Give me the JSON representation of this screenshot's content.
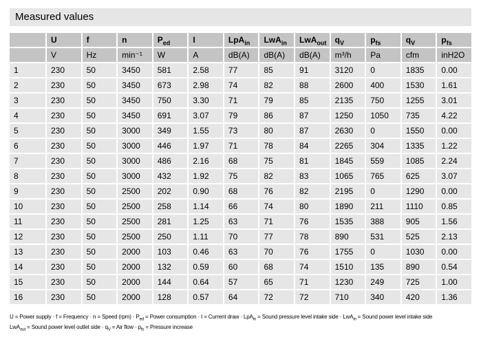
{
  "title": "Measured values",
  "colors": {
    "title_bar_bg": "#e6e6e6",
    "header_bg": "#c4c4c4",
    "cell_bg": "#e6e6e6",
    "text": "#000000"
  },
  "table": {
    "columns": [
      {
        "base": "",
        "sub": ""
      },
      {
        "base": "U",
        "sub": ""
      },
      {
        "base": "f",
        "sub": ""
      },
      {
        "base": "n",
        "sub": ""
      },
      {
        "base": "P",
        "sub": "ed"
      },
      {
        "base": "I",
        "sub": ""
      },
      {
        "base": "LpA",
        "sub": "in"
      },
      {
        "base": "LwA",
        "sub": "in"
      },
      {
        "base": "LwA",
        "sub": "out"
      },
      {
        "base": "q",
        "sub": "V"
      },
      {
        "base": "p",
        "sub": "fs"
      },
      {
        "base": "q",
        "sub": "V"
      },
      {
        "base": "p",
        "sub": "fs"
      }
    ],
    "units": [
      "",
      "V",
      "Hz",
      "min⁻¹",
      "W",
      "A",
      "dB(A)",
      "dB(A)",
      "dB(A)",
      "m³/h",
      "Pa",
      "cfm",
      "inH2O"
    ],
    "rows": [
      {
        "n": "1",
        "values": [
          "230",
          "50",
          "3450",
          "581",
          "2.58",
          "77",
          "85",
          "91",
          "3120",
          "0",
          "1835",
          "0.00"
        ]
      },
      {
        "n": "2",
        "values": [
          "230",
          "50",
          "3450",
          "673",
          "2.98",
          "74",
          "82",
          "88",
          "2600",
          "400",
          "1530",
          "1.61"
        ]
      },
      {
        "n": "3",
        "values": [
          "230",
          "50",
          "3450",
          "750",
          "3.30",
          "71",
          "79",
          "85",
          "2135",
          "750",
          "1255",
          "3.01"
        ]
      },
      {
        "n": "4",
        "values": [
          "230",
          "50",
          "3450",
          "691",
          "3.07",
          "79",
          "86",
          "87",
          "1250",
          "1050",
          "735",
          "4.22"
        ]
      },
      {
        "n": "5",
        "values": [
          "230",
          "50",
          "3000",
          "349",
          "1.55",
          "73",
          "80",
          "87",
          "2630",
          "0",
          "1550",
          "0.00"
        ]
      },
      {
        "n": "6",
        "values": [
          "230",
          "50",
          "3000",
          "446",
          "1.97",
          "71",
          "78",
          "84",
          "2265",
          "304",
          "1335",
          "1.22"
        ]
      },
      {
        "n": "7",
        "values": [
          "230",
          "50",
          "3000",
          "486",
          "2.16",
          "68",
          "75",
          "81",
          "1845",
          "559",
          "1085",
          "2.24"
        ]
      },
      {
        "n": "8",
        "values": [
          "230",
          "50",
          "3000",
          "432",
          "1.92",
          "75",
          "82",
          "83",
          "1065",
          "765",
          "625",
          "3.07"
        ]
      },
      {
        "n": "9",
        "values": [
          "230",
          "50",
          "2500",
          "202",
          "0.90",
          "68",
          "76",
          "82",
          "2195",
          "0",
          "1290",
          "0.00"
        ]
      },
      {
        "n": "10",
        "values": [
          "230",
          "50",
          "2500",
          "258",
          "1.14",
          "66",
          "74",
          "80",
          "1890",
          "211",
          "1110",
          "0.85"
        ]
      },
      {
        "n": "11",
        "values": [
          "230",
          "50",
          "2500",
          "281",
          "1.25",
          "63",
          "71",
          "76",
          "1535",
          "388",
          "905",
          "1.56"
        ]
      },
      {
        "n": "12",
        "values": [
          "230",
          "50",
          "2500",
          "250",
          "1.11",
          "70",
          "77",
          "78",
          "890",
          "531",
          "525",
          "2.13"
        ]
      },
      {
        "n": "13",
        "values": [
          "230",
          "50",
          "2000",
          "103",
          "0.46",
          "63",
          "70",
          "76",
          "1755",
          "0",
          "1030",
          "0.00"
        ]
      },
      {
        "n": "14",
        "values": [
          "230",
          "50",
          "2000",
          "132",
          "0.59",
          "60",
          "68",
          "74",
          "1510",
          "135",
          "890",
          "0.54"
        ]
      },
      {
        "n": "15",
        "values": [
          "230",
          "50",
          "2000",
          "144",
          "0.64",
          "57",
          "65",
          "71",
          "1230",
          "249",
          "725",
          "1.00"
        ]
      },
      {
        "n": "16",
        "values": [
          "230",
          "50",
          "2000",
          "128",
          "0.57",
          "64",
          "72",
          "72",
          "710",
          "340",
          "420",
          "1.36"
        ]
      }
    ]
  },
  "footnote": {
    "lines": [
      [
        {
          "t": "U = Power supply · f = Frequency · n = Speed (rpm) · P"
        },
        {
          "s": "ed"
        },
        {
          "t": " = Power consumption · I = Current draw · LpA"
        },
        {
          "s": "in"
        },
        {
          "t": " = Sound pressure level intake side · LwA"
        },
        {
          "s": "in"
        },
        {
          "t": " = Sound power level intake side"
        }
      ],
      [
        {
          "t": "LwA"
        },
        {
          "s": "out"
        },
        {
          "t": " = Sound power level outlet side · q"
        },
        {
          "s": "V"
        },
        {
          "t": " = Air flow · p"
        },
        {
          "s": "fs"
        },
        {
          "t": " = Pressure increase"
        }
      ]
    ]
  }
}
